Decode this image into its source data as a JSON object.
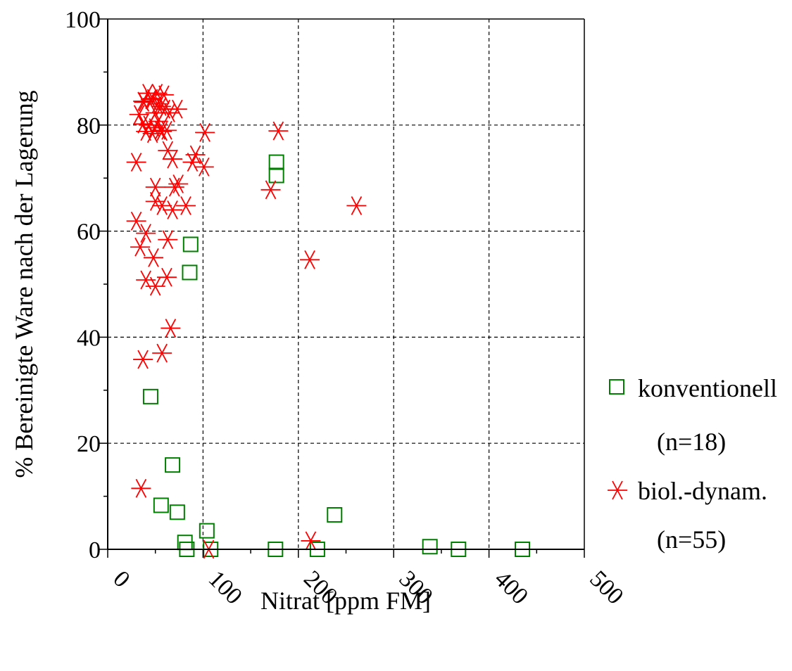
{
  "chart_data": {
    "type": "scatter",
    "title": "",
    "xlabel": "Nitrat [ppm FM]",
    "ylabel": "% Bereinigte Ware nach der Lagerung",
    "xlim": [
      0,
      500
    ],
    "ylim": [
      0,
      100
    ],
    "x_ticks": [
      "0",
      "100",
      "200",
      "300",
      "400",
      "500"
    ],
    "y_ticks": [
      "0",
      "20",
      "40",
      "60",
      "80",
      "100"
    ],
    "x_grid": [
      100,
      200,
      300,
      400
    ],
    "y_grid": [
      20,
      40,
      60,
      80
    ],
    "grid": true,
    "legend_position": "right",
    "series": [
      {
        "name": "konventionell",
        "count_label": "(n=18)",
        "marker": "square-icon",
        "color": "#007f00",
        "points": [
          [
            45,
            28.8
          ],
          [
            56,
            8.3
          ],
          [
            68,
            15.9
          ],
          [
            73,
            7.0
          ],
          [
            81,
            1.3
          ],
          [
            83,
            0.0
          ],
          [
            87,
            57.5
          ],
          [
            86,
            52.2
          ],
          [
            108,
            0.0
          ],
          [
            104,
            3.5
          ],
          [
            176,
            0.0
          ],
          [
            177,
            73.0
          ],
          [
            177,
            70.5
          ],
          [
            220,
            0.0
          ],
          [
            238,
            6.5
          ],
          [
            338,
            0.5
          ],
          [
            368,
            0.0
          ],
          [
            435,
            0.0
          ]
        ]
      },
      {
        "name": "biol.-dynam.",
        "count_label": "(n=55)",
        "marker": "asterisk-icon",
        "color": "#ff0000",
        "points": [
          [
            35,
            11.5
          ],
          [
            37,
            35.8
          ],
          [
            57,
            37.0
          ],
          [
            66,
            41.7
          ],
          [
            40,
            50.8
          ],
          [
            50,
            49.6
          ],
          [
            62,
            51.3
          ],
          [
            48,
            55.0
          ],
          [
            34,
            57.0
          ],
          [
            40,
            59.6
          ],
          [
            63,
            58.4
          ],
          [
            30,
            61.9
          ],
          [
            50,
            65.6
          ],
          [
            57,
            64.8
          ],
          [
            68,
            64.0
          ],
          [
            82,
            64.8
          ],
          [
            70,
            68.3
          ],
          [
            74,
            68.9
          ],
          [
            50,
            68.3
          ],
          [
            30,
            73.0
          ],
          [
            68,
            73.6
          ],
          [
            63,
            75.2
          ],
          [
            89,
            73.0
          ],
          [
            92,
            74.4
          ],
          [
            101,
            72.1
          ],
          [
            102,
            78.6
          ],
          [
            171,
            67.8
          ],
          [
            179,
            78.9
          ],
          [
            212,
            54.6
          ],
          [
            261,
            64.8
          ],
          [
            106,
            0.0
          ],
          [
            213,
            1.6
          ],
          [
            33,
            82.0
          ],
          [
            37,
            80.2
          ],
          [
            38,
            84.3
          ],
          [
            40,
            78.8
          ],
          [
            42,
            86.0
          ],
          [
            43,
            80.0
          ],
          [
            45,
            84.8
          ],
          [
            47,
            78.4
          ],
          [
            47,
            85.0
          ],
          [
            49,
            79.5
          ],
          [
            50,
            82.3
          ],
          [
            52,
            84.0
          ],
          [
            52,
            86.0
          ],
          [
            53,
            80.7
          ],
          [
            55,
            79.0
          ],
          [
            56,
            83.5
          ],
          [
            57,
            78.8
          ],
          [
            59,
            85.7
          ],
          [
            60,
            83.0
          ],
          [
            62,
            79.0
          ],
          [
            65,
            82.3
          ],
          [
            73,
            83.0
          ],
          [
            37,
            84.5
          ]
        ]
      }
    ]
  }
}
